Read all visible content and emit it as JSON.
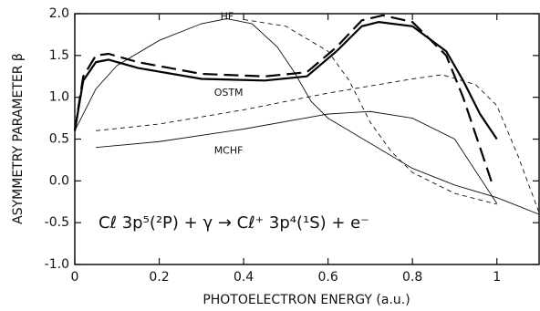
{
  "chart_data": {
    "type": "line",
    "xlabel": "PHOTOELECTRON ENERGY (a.u.)",
    "ylabel": "ASYMMETRY PARAMETER β",
    "xlim": [
      0,
      1.1
    ],
    "ylim": [
      -1.0,
      2.0
    ],
    "xticks": [
      0,
      0.2,
      0.4,
      0.6,
      0.8,
      1.0
    ],
    "yticks": [
      {
        "value": 2.0,
        "label": "2.0"
      },
      1.5,
      {
        "value": 1.0,
        "label": "1.0"
      },
      0.5,
      {
        "value": 0.0,
        "label": "0.0"
      },
      -0.5,
      {
        "value": -1.0,
        "label": "-1.0"
      }
    ],
    "grid": false,
    "annotation": "Cℓ 3p⁵(²P) + γ → Cℓ⁺ 3p⁴(¹S) + e⁻",
    "series": [
      {
        "name": "HF",
        "color": "#111",
        "line_width": 0.9,
        "dashed": false,
        "x": [
          0,
          0.05,
          0.1,
          0.2,
          0.3,
          0.36,
          0.42,
          0.48,
          0.52,
          0.56,
          0.6,
          0.65,
          0.7,
          0.75,
          0.8,
          0.9,
          1.0,
          1.05,
          1.1
        ],
        "values": [
          0.6,
          1.1,
          1.38,
          1.68,
          1.88,
          1.94,
          1.88,
          1.6,
          1.3,
          0.95,
          0.75,
          0.6,
          0.45,
          0.3,
          0.15,
          -0.05,
          -0.2,
          -0.3,
          -0.4
        ]
      },
      {
        "name": "OSTM",
        "color": "#000",
        "line_width": 2.2,
        "dashed": false,
        "x": [
          0,
          0.02,
          0.05,
          0.08,
          0.15,
          0.3,
          0.45,
          0.55,
          0.62,
          0.68,
          0.72,
          0.8,
          0.88,
          0.92,
          0.96,
          1.0
        ],
        "values": [
          0.6,
          1.2,
          1.42,
          1.45,
          1.35,
          1.22,
          1.2,
          1.25,
          1.55,
          1.85,
          1.9,
          1.85,
          1.55,
          1.2,
          0.8,
          0.5
        ]
      },
      {
        "name": "MCHF",
        "color": "#111",
        "line_width": 0.9,
        "dashed": false,
        "x": [
          0.05,
          0.2,
          0.4,
          0.6,
          0.7,
          0.8,
          0.9,
          1.0
        ],
        "values": [
          0.4,
          0.47,
          0.62,
          0.8,
          0.83,
          0.75,
          0.5,
          -0.27
        ]
      },
      {
        "color": "#000",
        "line_width": 2.2,
        "dashed": true,
        "x": [
          0,
          0.02,
          0.05,
          0.08,
          0.15,
          0.3,
          0.45,
          0.55,
          0.62,
          0.68,
          0.73,
          0.8,
          0.88,
          0.92,
          0.96,
          0.99
        ],
        "values": [
          0.6,
          1.25,
          1.5,
          1.52,
          1.42,
          1.28,
          1.25,
          1.3,
          1.6,
          1.92,
          1.98,
          1.9,
          1.5,
          1.0,
          0.4,
          -0.05
        ]
      },
      {
        "color": "#111",
        "line_width": 0.9,
        "dashed": true,
        "x": [
          0.05,
          0.2,
          0.4,
          0.6,
          0.8,
          0.87,
          0.95,
          1.0,
          1.05,
          1.1
        ],
        "values": [
          0.6,
          0.68,
          0.85,
          1.05,
          1.22,
          1.27,
          1.15,
          0.9,
          0.3,
          -0.38
        ]
      },
      {
        "color": "#111",
        "line_width": 0.9,
        "dashed": true,
        "x": [
          0.4,
          0.5,
          0.6,
          0.65,
          0.7,
          0.75,
          0.8,
          0.9,
          1.0
        ],
        "values": [
          1.93,
          1.85,
          1.55,
          1.2,
          0.7,
          0.35,
          0.1,
          -0.15,
          -0.28
        ]
      }
    ]
  }
}
